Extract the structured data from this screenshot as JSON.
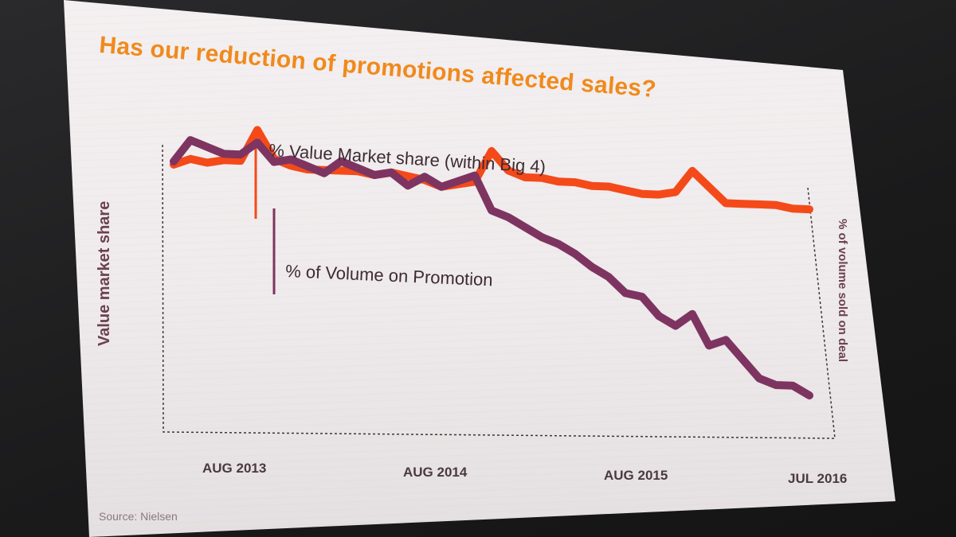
{
  "title": "Has our reduction of promotions affected sales?",
  "source": "Source: Nielsen",
  "colors": {
    "title": "#f08a1c",
    "value_share": "#f44a1a",
    "volume_promo": "#7e3460",
    "axis_text": "#4a3a40"
  },
  "chart_data": {
    "type": "line",
    "title": "Has our reduction of promotions affected sales?",
    "ylabel_left": "Value market share",
    "ylabel_right": "% of volume sold on deal",
    "x_tick_labels": [
      "AUG 2013",
      "AUG 2014",
      "AUG 2015",
      "JUL 2016"
    ],
    "x_tick_indices": [
      4,
      16,
      28,
      39
    ],
    "ylim": [
      0,
      100
    ],
    "grid": false,
    "series": [
      {
        "name": "% Value Market share (within Big 4)",
        "values": [
          78,
          80,
          79,
          80,
          80,
          90,
          81,
          79,
          78,
          78,
          78,
          78,
          77,
          78,
          77,
          76,
          74,
          75,
          76,
          86,
          80,
          78,
          78,
          77,
          77,
          76,
          76,
          75,
          74,
          74,
          75,
          82,
          77,
          72,
          72,
          72,
          72,
          71,
          71
        ]
      },
      {
        "name": "% of Volume on Promotion",
        "values": [
          79,
          86,
          84,
          82,
          82,
          86,
          80,
          81,
          79,
          77,
          81,
          79,
          77,
          78,
          74,
          77,
          74,
          76,
          78,
          67,
          65,
          62,
          59,
          57,
          54,
          50,
          47,
          42,
          41,
          35,
          32,
          36,
          26,
          28,
          22,
          16,
          14,
          14,
          11
        ]
      }
    ]
  }
}
